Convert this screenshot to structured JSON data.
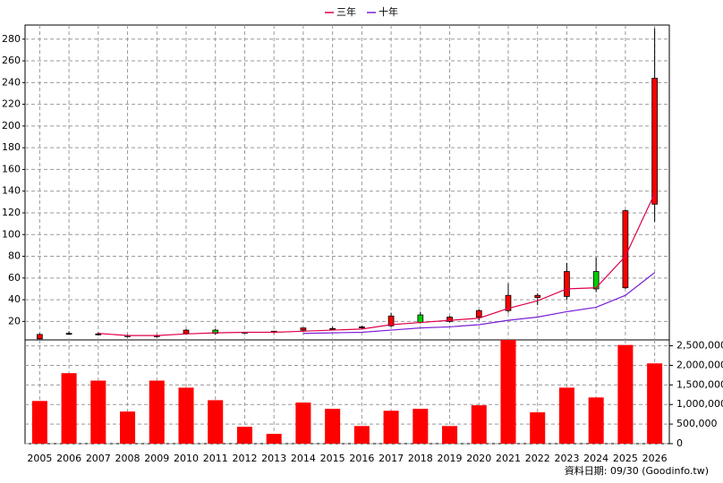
{
  "chart_data": {
    "type": "candlestick",
    "categories": [
      "2005",
      "2006",
      "2007",
      "2008",
      "2009",
      "2010",
      "2011",
      "2012",
      "2013",
      "2014",
      "2015",
      "2016",
      "2017",
      "2018",
      "2019",
      "2020",
      "2021",
      "2022",
      "2023",
      "2024",
      "2025",
      "2026"
    ],
    "open": [
      4,
      9,
      8.5,
      7,
      6,
      9,
      12,
      10,
      10,
      12,
      13,
      14.5,
      16,
      26,
      20,
      24,
      30,
      42,
      43,
      66,
      51,
      128
    ],
    "high": [
      9,
      11,
      10,
      8,
      8,
      13,
      13,
      10.5,
      11,
      14,
      15,
      16,
      28,
      29,
      25,
      31,
      55,
      46,
      74,
      79,
      123,
      290
    ],
    "low": [
      3,
      8,
      7,
      5,
      5,
      8,
      8,
      9.5,
      9,
      11,
      12,
      13,
      15,
      18,
      19,
      21,
      28,
      35,
      40,
      47,
      50,
      112
    ],
    "close": [
      8,
      9,
      8.5,
      6,
      7,
      12,
      9,
      10,
      11,
      14,
      13.5,
      15,
      25,
      19,
      24,
      30,
      44,
      44,
      66,
      50,
      122,
      244
    ],
    "up_color": "#ff0000",
    "down_color": "#00cc00",
    "series": [
      {
        "name": "三年",
        "color": "#e0004a",
        "values": [
          null,
          null,
          9,
          7,
          7,
          8.5,
          9.5,
          10,
          10,
          11,
          12,
          13,
          17,
          19,
          21,
          23,
          32,
          39,
          50,
          51,
          80,
          138
        ]
      },
      {
        "name": "十年",
        "color": "#7a1fd6",
        "values": [
          null,
          null,
          null,
          null,
          null,
          null,
          null,
          null,
          null,
          9,
          9.5,
          10,
          12,
          14,
          15,
          17,
          21,
          24,
          29,
          33,
          44,
          65
        ]
      }
    ],
    "ylim": [
      3,
      293
    ],
    "yticks": [
      20,
      40,
      60,
      80,
      100,
      120,
      140,
      160,
      180,
      200,
      220,
      240,
      260,
      280
    ],
    "volume": {
      "color": "#ff0000",
      "values": [
        1090000,
        1800000,
        1610000,
        820000,
        1610000,
        1430000,
        1110000,
        430000,
        250000,
        1050000,
        890000,
        450000,
        840000,
        890000,
        450000,
        980000,
        2650000,
        800000,
        1430000,
        1180000,
        2520000,
        2050000
      ],
      "ylim": [
        0,
        2650000
      ],
      "yticks": [
        0,
        {
          "value": 500000,
          "label": "500,000"
        },
        {
          "value": 1000000,
          "label": "1,000,000"
        },
        {
          "value": 1500000,
          "label": "1,500,000"
        },
        {
          "value": 2000000,
          "label": "2,000,000"
        },
        {
          "value": 2500000,
          "label": "2,500,000"
        }
      ]
    },
    "grid": true,
    "footer": "資料日期: 09/30 (Goodinfo.tw)"
  }
}
